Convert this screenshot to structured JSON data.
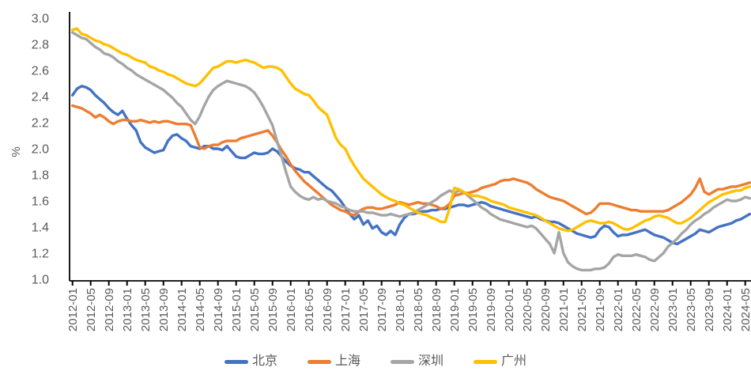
{
  "chart_data": {
    "type": "line",
    "title": "",
    "xlabel": "",
    "ylabel": "%",
    "ylim": [
      1.0,
      3.0
    ],
    "ytick_step": 0.2,
    "ytick_labels": [
      "3.0",
      "2.8",
      "2.6",
      "2.4",
      "2.2",
      "2.0",
      "1.8",
      "1.6",
      "1.4",
      "1.2",
      "1.0"
    ],
    "grid": false,
    "legend_position": "bottom",
    "x_unit": "month",
    "x_range": [
      "2012-01",
      "2024-06"
    ],
    "x_tick_every_months": 4,
    "x_tick_labels": [
      "2012-01",
      "2012-05",
      "2012-09",
      "2013-01",
      "2013-05",
      "2013-09",
      "2014-01",
      "2014-05",
      "2014-09",
      "2015-01",
      "2015-05",
      "2015-09",
      "2016-01",
      "2016-05",
      "2016-09",
      "2017-01",
      "2017-05",
      "2017-09",
      "2018-01",
      "2018-05",
      "2018-09",
      "2019-01",
      "2019-05",
      "2019-09",
      "2020-01",
      "2020-05",
      "2020-09",
      "2021-01",
      "2021-05",
      "2021-09",
      "2022-01",
      "2022-05",
      "2022-09",
      "2023-01",
      "2023-05",
      "2023-09",
      "2024-01",
      "2024-05"
    ],
    "axis_color": "#000000",
    "tick_label_color": "#595959",
    "series": [
      {
        "name": "北京",
        "color": "#4472C4",
        "values": [
          2.41,
          2.46,
          2.48,
          2.47,
          2.45,
          2.41,
          2.38,
          2.35,
          2.31,
          2.28,
          2.26,
          2.29,
          2.23,
          2.18,
          2.14,
          2.05,
          2.01,
          1.99,
          1.97,
          1.98,
          1.99,
          2.06,
          2.1,
          2.11,
          2.08,
          2.06,
          2.02,
          2.01,
          2.0,
          2.02,
          2.02,
          2.0,
          2.0,
          1.99,
          2.02,
          1.98,
          1.94,
          1.93,
          1.93,
          1.95,
          1.97,
          1.96,
          1.96,
          1.97,
          2.0,
          1.98,
          1.94,
          1.9,
          1.87,
          1.85,
          1.84,
          1.82,
          1.82,
          1.79,
          1.76,
          1.73,
          1.7,
          1.68,
          1.64,
          1.6,
          1.55,
          1.5,
          1.46,
          1.49,
          1.42,
          1.45,
          1.39,
          1.41,
          1.36,
          1.34,
          1.37,
          1.34,
          1.42,
          1.47,
          1.5,
          1.5,
          1.51,
          1.52,
          1.52,
          1.53,
          1.53,
          1.54,
          1.54,
          1.55,
          1.56,
          1.57,
          1.57,
          1.56,
          1.57,
          1.58,
          1.59,
          1.58,
          1.56,
          1.55,
          1.54,
          1.53,
          1.52,
          1.51,
          1.5,
          1.49,
          1.48,
          1.47,
          1.48,
          1.46,
          1.45,
          1.44,
          1.44,
          1.43,
          1.41,
          1.39,
          1.37,
          1.35,
          1.34,
          1.33,
          1.32,
          1.33,
          1.38,
          1.41,
          1.4,
          1.36,
          1.33,
          1.34,
          1.34,
          1.35,
          1.36,
          1.37,
          1.38,
          1.36,
          1.34,
          1.33,
          1.32,
          1.3,
          1.28,
          1.27,
          1.29,
          1.31,
          1.33,
          1.35,
          1.38,
          1.37,
          1.36,
          1.38,
          1.4,
          1.41,
          1.42,
          1.43,
          1.45,
          1.46,
          1.48,
          1.5
        ]
      },
      {
        "name": "上海",
        "color": "#ED7D31",
        "values": [
          2.33,
          2.32,
          2.31,
          2.29,
          2.27,
          2.24,
          2.26,
          2.24,
          2.21,
          2.19,
          2.21,
          2.22,
          2.22,
          2.21,
          2.21,
          2.22,
          2.21,
          2.2,
          2.21,
          2.2,
          2.21,
          2.21,
          2.2,
          2.19,
          2.19,
          2.19,
          2.18,
          2.1,
          2.01,
          2.0,
          2.02,
          2.03,
          2.03,
          2.05,
          2.06,
          2.06,
          2.06,
          2.08,
          2.09,
          2.1,
          2.11,
          2.12,
          2.13,
          2.14,
          2.1,
          2.05,
          1.99,
          1.94,
          1.88,
          1.83,
          1.79,
          1.75,
          1.72,
          1.69,
          1.66,
          1.63,
          1.6,
          1.57,
          1.55,
          1.53,
          1.52,
          1.5,
          1.49,
          1.52,
          1.54,
          1.55,
          1.55,
          1.54,
          1.54,
          1.55,
          1.56,
          1.57,
          1.59,
          1.58,
          1.57,
          1.58,
          1.59,
          1.58,
          1.58,
          1.57,
          1.56,
          1.54,
          1.55,
          1.58,
          1.64,
          1.65,
          1.66,
          1.66,
          1.67,
          1.68,
          1.7,
          1.71,
          1.72,
          1.73,
          1.75,
          1.76,
          1.76,
          1.77,
          1.76,
          1.75,
          1.74,
          1.72,
          1.69,
          1.67,
          1.65,
          1.63,
          1.62,
          1.61,
          1.6,
          1.58,
          1.56,
          1.54,
          1.52,
          1.5,
          1.51,
          1.54,
          1.58,
          1.58,
          1.58,
          1.57,
          1.56,
          1.55,
          1.54,
          1.53,
          1.53,
          1.52,
          1.52,
          1.52,
          1.52,
          1.52,
          1.52,
          1.53,
          1.55,
          1.57,
          1.59,
          1.62,
          1.65,
          1.7,
          1.77,
          1.67,
          1.65,
          1.67,
          1.69,
          1.69,
          1.7,
          1.71,
          1.71,
          1.72,
          1.73,
          1.74
        ]
      },
      {
        "name": "深圳",
        "color": "#A5A5A5",
        "values": [
          2.89,
          2.87,
          2.85,
          2.84,
          2.81,
          2.78,
          2.76,
          2.73,
          2.72,
          2.7,
          2.67,
          2.65,
          2.62,
          2.6,
          2.57,
          2.55,
          2.53,
          2.51,
          2.49,
          2.47,
          2.45,
          2.42,
          2.39,
          2.35,
          2.32,
          2.27,
          2.22,
          2.19,
          2.25,
          2.33,
          2.4,
          2.45,
          2.48,
          2.5,
          2.52,
          2.51,
          2.5,
          2.49,
          2.48,
          2.46,
          2.43,
          2.38,
          2.32,
          2.25,
          2.18,
          2.06,
          1.94,
          1.82,
          1.71,
          1.67,
          1.64,
          1.62,
          1.61,
          1.63,
          1.61,
          1.62,
          1.6,
          1.59,
          1.58,
          1.56,
          1.55,
          1.53,
          1.52,
          1.52,
          1.52,
          1.51,
          1.51,
          1.5,
          1.49,
          1.49,
          1.5,
          1.49,
          1.48,
          1.49,
          1.5,
          1.51,
          1.53,
          1.55,
          1.57,
          1.59,
          1.61,
          1.64,
          1.66,
          1.68,
          1.66,
          1.68,
          1.67,
          1.64,
          1.61,
          1.58,
          1.55,
          1.53,
          1.5,
          1.48,
          1.46,
          1.45,
          1.44,
          1.43,
          1.42,
          1.41,
          1.4,
          1.41,
          1.39,
          1.35,
          1.31,
          1.27,
          1.2,
          1.36,
          1.2,
          1.13,
          1.1,
          1.08,
          1.07,
          1.07,
          1.07,
          1.08,
          1.08,
          1.09,
          1.12,
          1.17,
          1.19,
          1.18,
          1.18,
          1.18,
          1.19,
          1.18,
          1.17,
          1.15,
          1.14,
          1.17,
          1.2,
          1.25,
          1.28,
          1.31,
          1.35,
          1.38,
          1.42,
          1.45,
          1.47,
          1.5,
          1.52,
          1.55,
          1.57,
          1.59,
          1.61,
          1.6,
          1.6,
          1.61,
          1.63,
          1.62
        ]
      },
      {
        "name": "广州",
        "color": "#FFC000",
        "values": [
          2.91,
          2.92,
          2.88,
          2.87,
          2.85,
          2.83,
          2.82,
          2.8,
          2.79,
          2.77,
          2.75,
          2.73,
          2.72,
          2.7,
          2.68,
          2.67,
          2.66,
          2.63,
          2.62,
          2.6,
          2.59,
          2.57,
          2.56,
          2.54,
          2.52,
          2.5,
          2.49,
          2.48,
          2.5,
          2.54,
          2.58,
          2.62,
          2.63,
          2.65,
          2.67,
          2.67,
          2.66,
          2.67,
          2.68,
          2.67,
          2.66,
          2.64,
          2.62,
          2.63,
          2.63,
          2.62,
          2.6,
          2.55,
          2.5,
          2.46,
          2.44,
          2.42,
          2.41,
          2.37,
          2.32,
          2.29,
          2.26,
          2.17,
          2.08,
          2.03,
          2.0,
          1.93,
          1.87,
          1.82,
          1.77,
          1.74,
          1.71,
          1.68,
          1.65,
          1.63,
          1.61,
          1.6,
          1.58,
          1.57,
          1.55,
          1.53,
          1.51,
          1.5,
          1.49,
          1.47,
          1.46,
          1.44,
          1.44,
          1.55,
          1.7,
          1.69,
          1.67,
          1.65,
          1.64,
          1.64,
          1.63,
          1.62,
          1.6,
          1.59,
          1.58,
          1.57,
          1.55,
          1.54,
          1.53,
          1.52,
          1.51,
          1.5,
          1.49,
          1.47,
          1.45,
          1.43,
          1.41,
          1.39,
          1.38,
          1.37,
          1.38,
          1.4,
          1.42,
          1.44,
          1.45,
          1.44,
          1.43,
          1.43,
          1.44,
          1.43,
          1.41,
          1.39,
          1.38,
          1.39,
          1.41,
          1.43,
          1.45,
          1.46,
          1.48,
          1.49,
          1.48,
          1.47,
          1.45,
          1.43,
          1.43,
          1.45,
          1.47,
          1.5,
          1.53,
          1.56,
          1.59,
          1.61,
          1.63,
          1.65,
          1.66,
          1.67,
          1.68,
          1.68,
          1.7,
          1.71
        ]
      }
    ]
  }
}
